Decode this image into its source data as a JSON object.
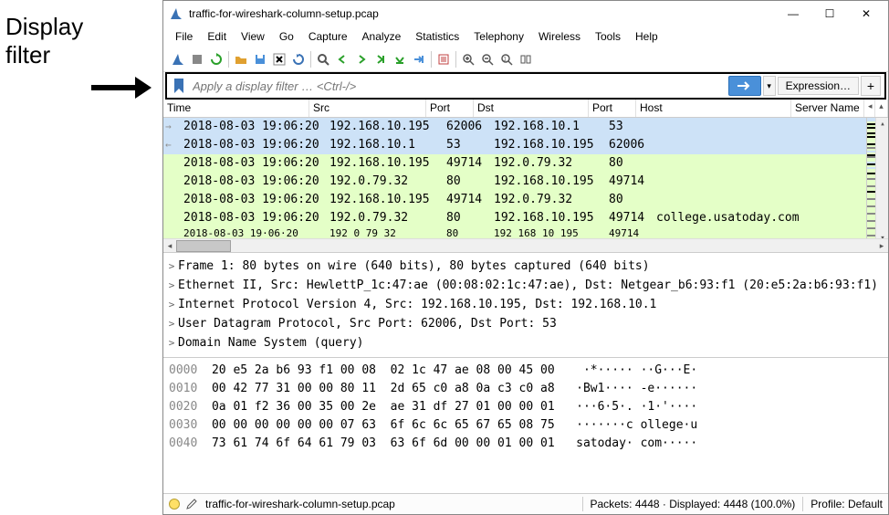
{
  "annotation": {
    "label1": "Display",
    "label2": "filter"
  },
  "titlebar": {
    "icon": "shark-fin",
    "title": "traffic-for-wireshark-column-setup.pcap"
  },
  "menus": [
    "File",
    "Edit",
    "View",
    "Go",
    "Capture",
    "Analyze",
    "Statistics",
    "Telephony",
    "Wireless",
    "Tools",
    "Help"
  ],
  "toolbar_icons": [
    {
      "name": "shark-start",
      "color": "#3a72b5"
    },
    {
      "name": "stop",
      "color": "#888"
    },
    {
      "name": "restart",
      "color": "#2aa02a"
    },
    {
      "name": "sep"
    },
    {
      "name": "open-folder",
      "color": "#e0a030"
    },
    {
      "name": "save",
      "color": "#4a90d9"
    },
    {
      "name": "close-x",
      "color": "#000"
    },
    {
      "name": "reload",
      "color": "#3a72b5"
    },
    {
      "name": "sep"
    },
    {
      "name": "search",
      "color": "#555"
    },
    {
      "name": "nav-back",
      "color": "#2aa02a"
    },
    {
      "name": "nav-fwd",
      "color": "#2aa02a"
    },
    {
      "name": "jump-last",
      "color": "#2aa02a"
    },
    {
      "name": "jump-down",
      "color": "#2aa02a"
    },
    {
      "name": "goto",
      "color": "#4a90d9"
    },
    {
      "name": "sep"
    },
    {
      "name": "auto-scroll",
      "color": "#c04040"
    },
    {
      "name": "sep"
    },
    {
      "name": "zoom-in",
      "color": "#555"
    },
    {
      "name": "zoom-out",
      "color": "#555"
    },
    {
      "name": "zoom-reset",
      "color": "#555"
    },
    {
      "name": "resize-cols",
      "color": "#555"
    }
  ],
  "filterbar": {
    "placeholder": "Apply a display filter … <Ctrl-/>",
    "expression_label": "Expression…"
  },
  "columns": [
    {
      "key": "time",
      "label": "Time",
      "w": 160
    },
    {
      "key": "src",
      "label": "Src",
      "w": 128
    },
    {
      "key": "port1",
      "label": "Port",
      "w": 52
    },
    {
      "key": "dst",
      "label": "Dst",
      "w": 126
    },
    {
      "key": "port2",
      "label": "Port",
      "w": 52
    },
    {
      "key": "host",
      "label": "Host",
      "w": 170
    },
    {
      "key": "server",
      "label": "Server Name",
      "w": null
    }
  ],
  "packets": [
    {
      "cls": "sel",
      "marker": "→",
      "time": "2018-08-03 19:06:20",
      "src": "192.168.10.195",
      "p1": "62006",
      "dst": "192.168.10.1",
      "p2": "53",
      "host": ""
    },
    {
      "cls": "sel",
      "marker": "←",
      "time": "2018-08-03 19:06:20",
      "src": "192.168.10.1",
      "p1": "53",
      "dst": "192.168.10.195",
      "p2": "62006",
      "host": ""
    },
    {
      "cls": "http",
      "marker": "",
      "time": "2018-08-03 19:06:20",
      "src": "192.168.10.195",
      "p1": "49714",
      "dst": "192.0.79.32",
      "p2": "80",
      "host": ""
    },
    {
      "cls": "http",
      "marker": "",
      "time": "2018-08-03 19:06:20",
      "src": "192.0.79.32",
      "p1": "80",
      "dst": "192.168.10.195",
      "p2": "49714",
      "host": ""
    },
    {
      "cls": "http",
      "marker": "",
      "time": "2018-08-03 19:06:20",
      "src": "192.168.10.195",
      "p1": "49714",
      "dst": "192.0.79.32",
      "p2": "80",
      "host": ""
    },
    {
      "cls": "http",
      "marker": "",
      "time": "2018-08-03 19:06:20",
      "src": "192.0.79.32",
      "p1": "80",
      "dst": "192.168.10.195",
      "p2": "49714",
      "host": "college.usatoday.com"
    },
    {
      "cls": "cut",
      "marker": "",
      "time": "2018-08-03 19·06·20",
      "src": "192 0 79 32",
      "p1": "80",
      "dst": "192 168 10 195",
      "p2": "49714",
      "host": ""
    }
  ],
  "minimap_colors": [
    "#cde2f7",
    "#cde2f7",
    "#e4ffc7",
    "#000",
    "#e4ffc7",
    "#000",
    "#e4ffc7",
    "#e4ffc7",
    "#000",
    "#e4ffc7",
    "#000",
    "#e4ffc7",
    "#e4ffc7",
    "#e4ffc7",
    "#000",
    "#e4ffc7",
    "#888",
    "#e4ffc7",
    "#cde2f7",
    "#e4ffc7",
    "#000",
    "#888",
    "#e4ffc7",
    "#e4ffc7",
    "#cde2f7",
    "#000",
    "#e4ffc7",
    "#cde2f7",
    "#e4ffc7",
    "#e4ffc7",
    "#000",
    "#e4ffc7",
    "#e4ffc7",
    "#888",
    "#e4ffc7",
    "#e4ffc7",
    "#e4ffc7",
    "#888",
    "#e4ffc7",
    "#e4ffc7",
    "#000",
    "#e4ffc7",
    "#e4ffc7",
    "#e4ffc7",
    "#888",
    "#e4ffc7",
    "#e4ffc7",
    "#e4ffc7",
    "#888",
    "#e4ffc7",
    "#e4ffc7",
    "#e4ffc7",
    "#888",
    "#e4ffc7",
    "#e4ffc7",
    "#e4ffc7",
    "#888",
    "#e4ffc7",
    "#e4ffc7",
    "#e4ffc7",
    "#888",
    "#e4ffc7",
    "#e4ffc7",
    "#e4ffc7",
    "#888",
    "#e4ffc7",
    "#e4ffc7",
    "#e4ffc7",
    "#888",
    "#e4ffc7"
  ],
  "details": [
    "Frame 1: 80 bytes on wire (640 bits), 80 bytes captured (640 bits)",
    "Ethernet II, Src: HewlettP_1c:47:ae (00:08:02:1c:47:ae), Dst: Netgear_b6:93:f1 (20:e5:2a:b6:93:f1)",
    "Internet Protocol Version 4, Src: 192.168.10.195, Dst: 192.168.10.1",
    "User Datagram Protocol, Src Port: 62006, Dst Port: 53",
    "Domain Name System (query)"
  ],
  "hex": [
    {
      "off": "0000",
      "bytes": "20 e5 2a b6 93 f1 00 08  02 1c 47 ae 08 00 45 00",
      "ascii": "   ·*····· ··G···E·"
    },
    {
      "off": "0010",
      "bytes": "00 42 77 31 00 00 80 11  2d 65 c0 a8 0a c3 c0 a8",
      "ascii": "  ·Bw1···· -e······"
    },
    {
      "off": "0020",
      "bytes": "0a 01 f2 36 00 35 00 2e  ae 31 df 27 01 00 00 01",
      "ascii": "  ···6·5·. ·1·'····"
    },
    {
      "off": "0030",
      "bytes": "00 00 00 00 00 00 07 63  6f 6c 6c 65 67 65 08 75",
      "ascii": "  ·······c ollege·u"
    },
    {
      "off": "0040",
      "bytes": "73 61 74 6f 64 61 79 03  63 6f 6d 00 00 01 00 01",
      "ascii": "  satoday· com·····"
    }
  ],
  "statusbar": {
    "file": "traffic-for-wireshark-column-setup.pcap",
    "packets": "Packets: 4448 · Displayed: 4448 (100.0%)",
    "profile": "Profile: Default"
  }
}
